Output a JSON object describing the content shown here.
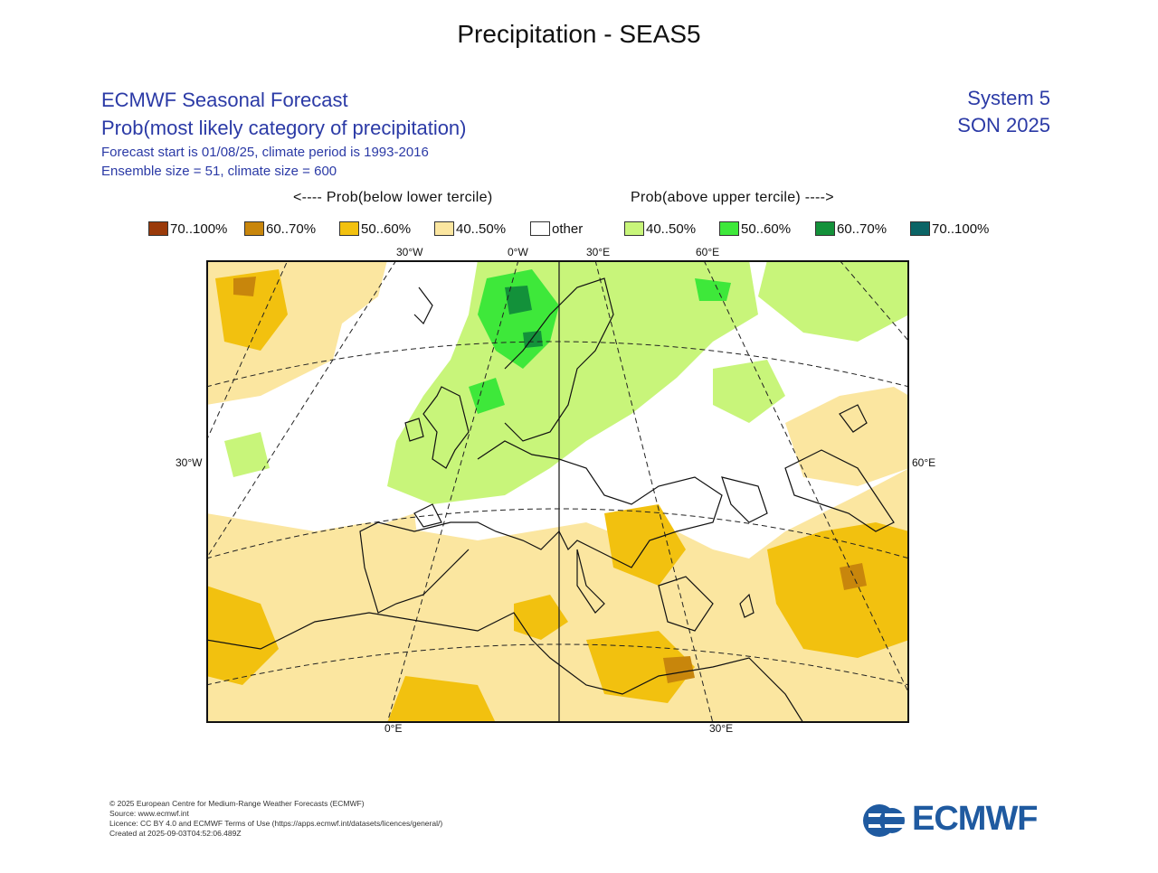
{
  "page_title": "Precipitation - SEAS5",
  "header": {
    "line1": "ECMWF Seasonal Forecast",
    "line2": "Prob(most likely category of precipitation)",
    "line3": "Forecast start is 01/08/25, climate period is 1993-2016",
    "line4": "Ensemble size = 51, climate size = 600",
    "system": "System 5",
    "season": "SON 2025"
  },
  "legend": {
    "below_heading": "<---- Prob(below lower tercile)",
    "above_heading": "Prob(above upper tercile) ---->",
    "items": [
      {
        "label": "70..100%",
        "color": "#9a3a0a"
      },
      {
        "label": "60..70%",
        "color": "#c8860c"
      },
      {
        "label": "50..60%",
        "color": "#f2c10f"
      },
      {
        "label": "40..50%",
        "color": "#fbe6a0"
      },
      {
        "label": "other",
        "color": "#ffffff"
      },
      {
        "label": "40..50%",
        "color": "#c8f57a"
      },
      {
        "label": "50..60%",
        "color": "#3ee83a"
      },
      {
        "label": "60..70%",
        "color": "#13913a"
      },
      {
        "label": "70..100%",
        "color": "#0b6466"
      }
    ]
  },
  "map": {
    "lon_labels_top": [
      "30°W",
      "0°W",
      "30°E",
      "60°E"
    ],
    "lon_labels_bottom": [
      "0°E",
      "30°E"
    ],
    "lat_label_left": "30°W",
    "lat_label_right": "60°E"
  },
  "footer": {
    "line1": "© 2025 European Centre for Medium-Range Weather Forecasts (ECMWF)",
    "line2": "Source: www.ecmwf.int",
    "line3": "Licence: CC BY 4.0 and ECMWF Terms of Use (https://apps.ecmwf.int/datasets/licences/general/)",
    "line4": "Created at 2025-09-03T04:52:06.489Z"
  },
  "logo": {
    "text": "ECMWF",
    "color": "#1f5aa0"
  }
}
